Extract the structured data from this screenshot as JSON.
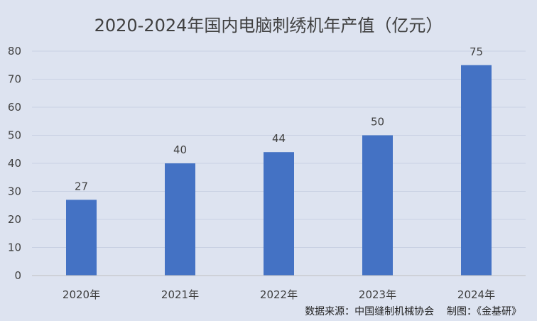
{
  "chart_data": {
    "type": "bar",
    "title": "2020-2024年国内电脑刺绣机年产值（亿元）",
    "categories": [
      "2020年",
      "2021年",
      "2022年",
      "2023年",
      "2024年"
    ],
    "values": [
      27,
      40,
      44,
      50,
      75
    ],
    "xlabel": "",
    "ylabel": "",
    "ylim": [
      0,
      80
    ],
    "yticks": [
      0,
      10,
      20,
      30,
      40,
      50,
      60,
      70,
      80
    ],
    "grid": true,
    "legend": "none",
    "bar_color": "#4472c4",
    "grid_color": "#c9d1e3"
  },
  "source": "数据来源：中国缝制机械协会    制图：《金基研》"
}
